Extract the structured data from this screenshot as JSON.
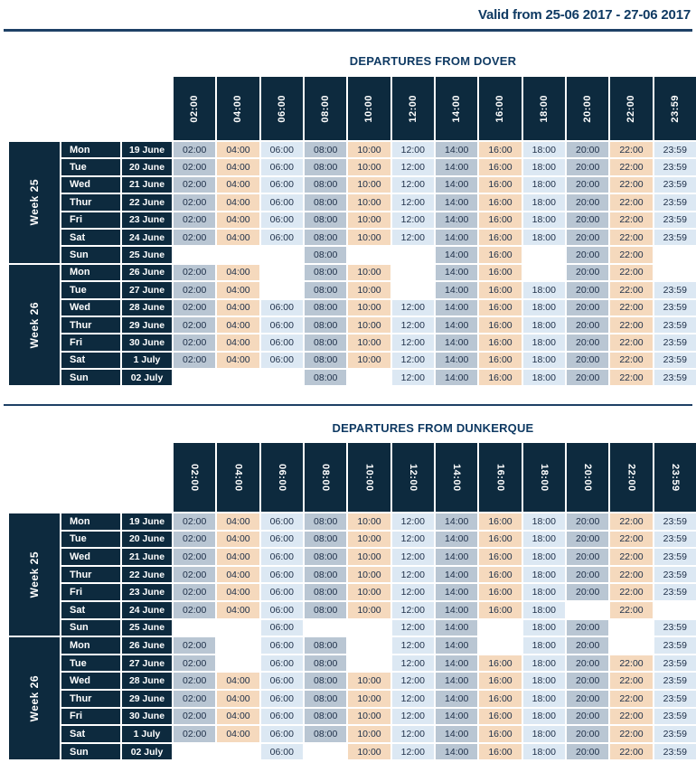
{
  "page": {
    "valid_text": "Valid from 25-06 2017 - 27-06 2017"
  },
  "times": [
    "02:00",
    "04:00",
    "06:00",
    "08:00",
    "10:00",
    "12:00",
    "14:00",
    "16:00",
    "18:00",
    "20:00",
    "22:00",
    "23:59"
  ],
  "colors": {
    "navy": "#0d2a3e",
    "steel": "#b9c6d3",
    "peach": "#f5d9bd",
    "pale": "#dce8f3",
    "title": "#0f3a63",
    "rule": "#1e4066",
    "celltext": "#20314a"
  },
  "tables": [
    {
      "title": "DEPARTURES FROM DOVER",
      "header_text_direction": "up",
      "weeks": [
        {
          "label": "Week 25",
          "rows": [
            {
              "day": "Mon",
              "date": "19 June",
              "slots": [
                1,
                1,
                1,
                1,
                1,
                1,
                1,
                1,
                1,
                1,
                1,
                1
              ]
            },
            {
              "day": "Tue",
              "date": "20 June",
              "slots": [
                1,
                1,
                1,
                1,
                1,
                1,
                1,
                1,
                1,
                1,
                1,
                1
              ]
            },
            {
              "day": "Wed",
              "date": "21 June",
              "slots": [
                1,
                1,
                1,
                1,
                1,
                1,
                1,
                1,
                1,
                1,
                1,
                1
              ]
            },
            {
              "day": "Thur",
              "date": "22 June",
              "slots": [
                1,
                1,
                1,
                1,
                1,
                1,
                1,
                1,
                1,
                1,
                1,
                1
              ]
            },
            {
              "day": "Fri",
              "date": "23 June",
              "slots": [
                1,
                1,
                1,
                1,
                1,
                1,
                1,
                1,
                1,
                1,
                1,
                1
              ]
            },
            {
              "day": "Sat",
              "date": "24 June",
              "slots": [
                1,
                1,
                1,
                1,
                1,
                1,
                1,
                1,
                1,
                1,
                1,
                1
              ]
            },
            {
              "day": "Sun",
              "date": "25 June",
              "slots": [
                0,
                0,
                0,
                1,
                0,
                0,
                1,
                1,
                0,
                1,
                1,
                0
              ]
            }
          ]
        },
        {
          "label": "Week 26",
          "rows": [
            {
              "day": "Mon",
              "date": "26 June",
              "slots": [
                1,
                1,
                0,
                1,
                1,
                0,
                1,
                1,
                0,
                1,
                1,
                0
              ]
            },
            {
              "day": "Tue",
              "date": "27 June",
              "slots": [
                1,
                1,
                0,
                1,
                1,
                0,
                1,
                1,
                1,
                1,
                1,
                1
              ]
            },
            {
              "day": "Wed",
              "date": "28 June",
              "slots": [
                1,
                1,
                1,
                1,
                1,
                1,
                1,
                1,
                1,
                1,
                1,
                1
              ]
            },
            {
              "day": "Thur",
              "date": "29 June",
              "slots": [
                1,
                1,
                1,
                1,
                1,
                1,
                1,
                1,
                1,
                1,
                1,
                1
              ]
            },
            {
              "day": "Fri",
              "date": "30 June",
              "slots": [
                1,
                1,
                1,
                1,
                1,
                1,
                1,
                1,
                1,
                1,
                1,
                1
              ]
            },
            {
              "day": "Sat",
              "date": "1 July",
              "slots": [
                1,
                1,
                1,
                1,
                1,
                1,
                1,
                1,
                1,
                1,
                1,
                1
              ]
            },
            {
              "day": "Sun",
              "date": "02 July",
              "slots": [
                0,
                0,
                0,
                1,
                0,
                1,
                1,
                1,
                1,
                1,
                1,
                1
              ]
            }
          ]
        }
      ]
    },
    {
      "title": "DEPARTURES FROM DUNKERQUE",
      "header_text_direction": "down",
      "weeks": [
        {
          "label": "Week 25",
          "rows": [
            {
              "day": "Mon",
              "date": "19 June",
              "slots": [
                1,
                1,
                1,
                1,
                1,
                1,
                1,
                1,
                1,
                1,
                1,
                1
              ]
            },
            {
              "day": "Tue",
              "date": "20 June",
              "slots": [
                1,
                1,
                1,
                1,
                1,
                1,
                1,
                1,
                1,
                1,
                1,
                1
              ]
            },
            {
              "day": "Wed",
              "date": "21 June",
              "slots": [
                1,
                1,
                1,
                1,
                1,
                1,
                1,
                1,
                1,
                1,
                1,
                1
              ]
            },
            {
              "day": "Thur",
              "date": "22 June",
              "slots": [
                1,
                1,
                1,
                1,
                1,
                1,
                1,
                1,
                1,
                1,
                1,
                1
              ]
            },
            {
              "day": "Fri",
              "date": "23 June",
              "slots": [
                1,
                1,
                1,
                1,
                1,
                1,
                1,
                1,
                1,
                1,
                1,
                1
              ]
            },
            {
              "day": "Sat",
              "date": "24 June",
              "slots": [
                1,
                1,
                1,
                1,
                1,
                1,
                1,
                1,
                1,
                0,
                1,
                0
              ]
            },
            {
              "day": "Sun",
              "date": "25 June",
              "slots": [
                0,
                0,
                1,
                0,
                0,
                1,
                1,
                0,
                1,
                1,
                0,
                1
              ]
            }
          ]
        },
        {
          "label": "Week 26",
          "rows": [
            {
              "day": "Mon",
              "date": "26 June",
              "slots": [
                1,
                0,
                1,
                1,
                0,
                1,
                1,
                0,
                1,
                1,
                0,
                1
              ]
            },
            {
              "day": "Tue",
              "date": "27 June",
              "slots": [
                1,
                0,
                1,
                1,
                0,
                1,
                1,
                1,
                1,
                1,
                1,
                1
              ]
            },
            {
              "day": "Wed",
              "date": "28 June",
              "slots": [
                1,
                1,
                1,
                1,
                1,
                1,
                1,
                1,
                1,
                1,
                1,
                1
              ]
            },
            {
              "day": "Thur",
              "date": "29 June",
              "slots": [
                1,
                1,
                1,
                1,
                1,
                1,
                1,
                1,
                1,
                1,
                1,
                1
              ]
            },
            {
              "day": "Fri",
              "date": "30 June",
              "slots": [
                1,
                1,
                1,
                1,
                1,
                1,
                1,
                1,
                1,
                1,
                1,
                1
              ]
            },
            {
              "day": "Sat",
              "date": "1 July",
              "slots": [
                1,
                1,
                1,
                1,
                1,
                1,
                1,
                1,
                1,
                1,
                1,
                1
              ]
            },
            {
              "day": "Sun",
              "date": "02 July",
              "slots": [
                0,
                0,
                1,
                0,
                1,
                1,
                1,
                1,
                1,
                1,
                1,
                1
              ]
            }
          ]
        }
      ]
    }
  ]
}
